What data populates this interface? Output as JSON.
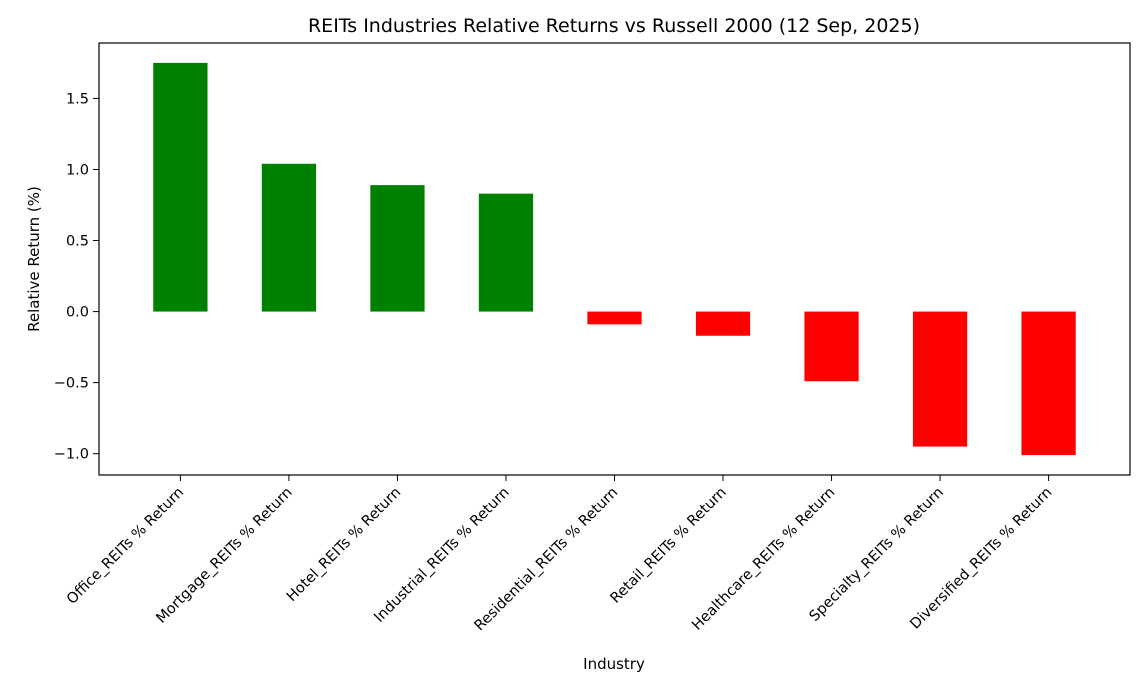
{
  "chart_data": {
    "type": "bar",
    "title": "REITs Industries Relative Returns vs Russell 2000 (12 Sep, 2025)",
    "xlabel": "Industry",
    "ylabel": "Relative Return (%)",
    "categories": [
      "Office_REITs % Return",
      "Mortgage_REITs % Return",
      "Hotel_REITs % Return",
      "Industrial_REITs % Return",
      "Residential_REITs % Return",
      "Retail_REITs % Return",
      "Healthcare_REITs % Return",
      "Specialty_REITs % Return",
      "Diversified_REITs % Return"
    ],
    "values": [
      1.75,
      1.04,
      0.89,
      0.83,
      -0.09,
      -0.17,
      -0.49,
      -0.95,
      -1.01
    ],
    "ylim": [
      -1.15,
      1.89
    ],
    "yticks": [
      -1.0,
      -0.5,
      0.0,
      0.5,
      1.0,
      1.5
    ],
    "ytick_labels": [
      "−1.0",
      "−0.5",
      "0.0",
      "0.5",
      "1.0",
      "1.5"
    ],
    "colors": {
      "positive": "#008000",
      "negative": "#ff0000"
    },
    "grid": false,
    "legend": "none"
  }
}
